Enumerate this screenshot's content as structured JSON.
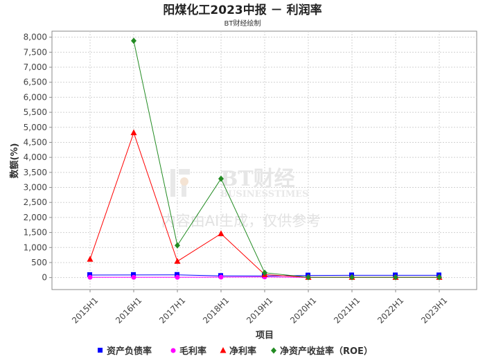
{
  "chart_data": {
    "type": "line",
    "title": "阳煤化工2023中报 － 利润率",
    "subtitle": "BT财经绘制",
    "xlabel": "项目",
    "ylabel": "数额(%)",
    "ylim": [
      -400,
      8200
    ],
    "y_ticks": [
      0,
      500,
      1000,
      1500,
      2000,
      2500,
      3000,
      3500,
      4000,
      4500,
      5000,
      5500,
      6000,
      6500,
      7000,
      7500,
      8000
    ],
    "y_tick_labels": [
      "0",
      "500",
      "1,000",
      "1,500",
      "2,000",
      "2,500",
      "3,000",
      "3,500",
      "4,000",
      "4,500",
      "5,000",
      "5,500",
      "6,000",
      "6,500",
      "7,000",
      "7,500",
      "8,000"
    ],
    "categories": [
      "2015H1",
      "2016H1",
      "2017H1",
      "2018H1",
      "2019H1",
      "2020H1",
      "2021H1",
      "2022H1",
      "2023H1"
    ],
    "grid": true,
    "legend_position": "bottom",
    "series": [
      {
        "name": "资产负债率",
        "color": "#0000ff",
        "marker": "square",
        "values": [
          85,
          88,
          90,
          55,
          52,
          70,
          75,
          75,
          75
        ]
      },
      {
        "name": "毛利率",
        "color": "#ff00ff",
        "marker": "circle",
        "values": [
          10,
          8,
          10,
          15,
          20,
          5,
          5,
          5,
          5
        ]
      },
      {
        "name": "净利率",
        "color": "#ff0000",
        "marker": "triangle",
        "values": [
          610,
          4820,
          540,
          1460,
          100,
          5,
          5,
          5,
          5
        ]
      },
      {
        "name": "净资产收益率（ROE）",
        "color": "#228b22",
        "marker": "diamond",
        "values": [
          null,
          7880,
          1070,
          3290,
          160,
          10,
          10,
          10,
          10
        ]
      }
    ]
  },
  "watermark": {
    "brand": "BT财经",
    "brand_en": "BUSINESSTIMES",
    "note": "内容由AI生成，仅供参考"
  }
}
